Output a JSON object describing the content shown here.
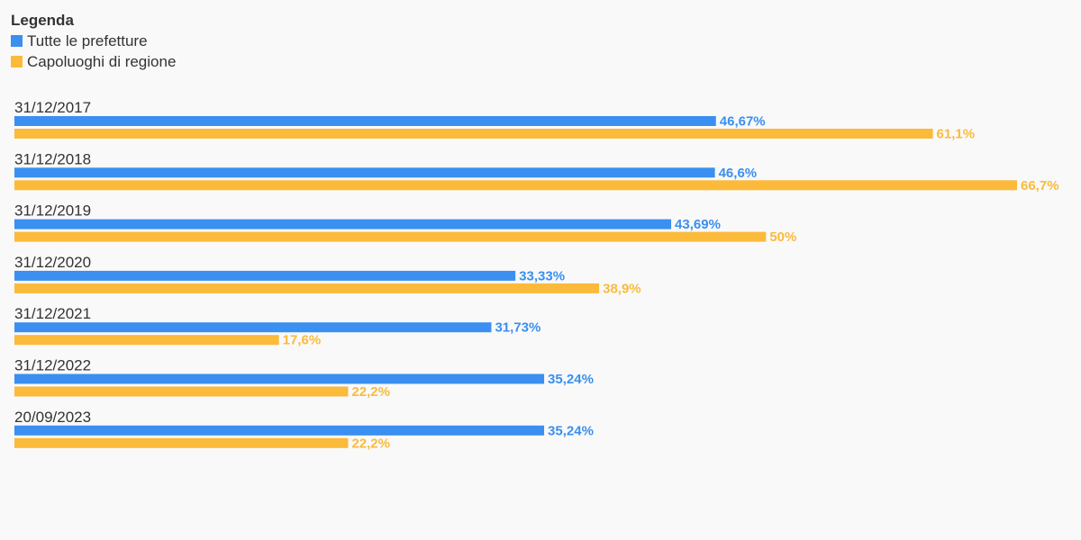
{
  "legend": {
    "title": "Legenda"
  },
  "chart_data": {
    "type": "bar",
    "orientation": "horizontal",
    "legend_position": "top-left",
    "grid": false,
    "xlim": [
      0,
      66.7
    ],
    "categories": [
      "31/12/2017",
      "31/12/2018",
      "31/12/2019",
      "31/12/2020",
      "31/12/2021",
      "31/12/2022",
      "20/09/2023"
    ],
    "series": [
      {
        "name": "Tutte le prefetture",
        "color": "#3a8ff0",
        "values": [
          46.67,
          46.6,
          43.69,
          33.33,
          31.73,
          35.24,
          35.24
        ],
        "labels": [
          "46,67%",
          "46,6%",
          "43,69%",
          "33,33%",
          "31,73%",
          "35,24%",
          "35,24%"
        ]
      },
      {
        "name": "Capoluoghi di regione",
        "color": "#fbba3a",
        "values": [
          61.1,
          66.7,
          50,
          38.9,
          17.6,
          22.2,
          22.2
        ],
        "labels": [
          "61,1%",
          "66,7%",
          "50%",
          "38,9%",
          "17,6%",
          "22,2%",
          "22,2%"
        ]
      }
    ]
  }
}
